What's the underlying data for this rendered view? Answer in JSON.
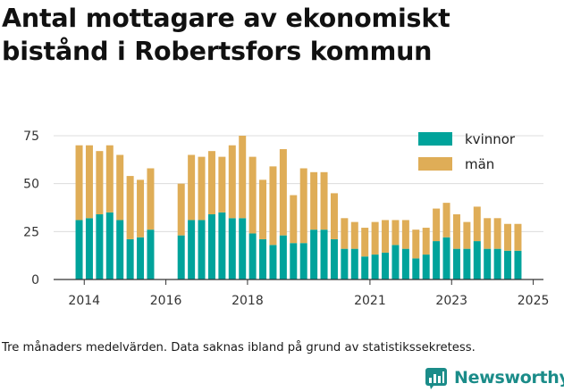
{
  "title": "Antal mottagare av ekonomiskt bistånd i Robertsfors kommun",
  "footnote": "Tre månaders medelvärden. Data saknas ibland på grund av statistikssekretess.",
  "brand": {
    "name": "Newsworthy",
    "color": "#1b8c89"
  },
  "chart_data": {
    "type": "bar",
    "stacked": true,
    "grid": true,
    "legend_position": "top-right",
    "ylim": [
      0,
      75
    ],
    "yticks": [
      0,
      25,
      50,
      75
    ],
    "xticks": [
      "2014",
      "2016",
      "2018",
      "2021",
      "2023",
      "2025"
    ],
    "xlabel": "",
    "ylabel": "",
    "categories": [
      "2014-Q2",
      "2014-Q3",
      "2014-Q4",
      "2015-Q1",
      "2015-Q2",
      "2015-Q3",
      "2015-Q4",
      "2016-Q1",
      "2016-Q4",
      "2017-Q1",
      "2017-Q2",
      "2017-Q3",
      "2017-Q4",
      "2018-Q1",
      "2018-Q2",
      "2018-Q3",
      "2018-Q4",
      "2019-Q1",
      "2019-Q2",
      "2019-Q3",
      "2019-Q4",
      "2020-Q1",
      "2020-Q2",
      "2020-Q3",
      "2020-Q4",
      "2021-Q1",
      "2021-Q2",
      "2021-Q3",
      "2021-Q4",
      "2022-Q1",
      "2022-Q2",
      "2022-Q3",
      "2022-Q4",
      "2023-Q1",
      "2023-Q2",
      "2023-Q3",
      "2023-Q4",
      "2024-Q1",
      "2024-Q2",
      "2024-Q3",
      "2024-Q4",
      "2025-Q1"
    ],
    "series": [
      {
        "name": "kvinnor",
        "color": "#00a39b",
        "values": [
          31,
          32,
          34,
          35,
          31,
          21,
          22,
          26,
          23,
          31,
          31,
          34,
          35,
          32,
          32,
          24,
          21,
          18,
          23,
          19,
          19,
          26,
          26,
          21,
          16,
          16,
          12,
          13,
          14,
          18,
          16,
          11,
          13,
          20,
          22,
          16,
          16,
          20,
          16,
          16,
          15,
          15
        ]
      },
      {
        "name": "män",
        "color": "#dfad57",
        "values": [
          39,
          38,
          33,
          35,
          34,
          33,
          30,
          32,
          27,
          34,
          33,
          33,
          29,
          38,
          43,
          40,
          31,
          41,
          45,
          25,
          39,
          30,
          30,
          24,
          16,
          14,
          15,
          17,
          17,
          13,
          15,
          15,
          14,
          17,
          18,
          18,
          14,
          18,
          16,
          16,
          14,
          14
        ]
      }
    ]
  }
}
